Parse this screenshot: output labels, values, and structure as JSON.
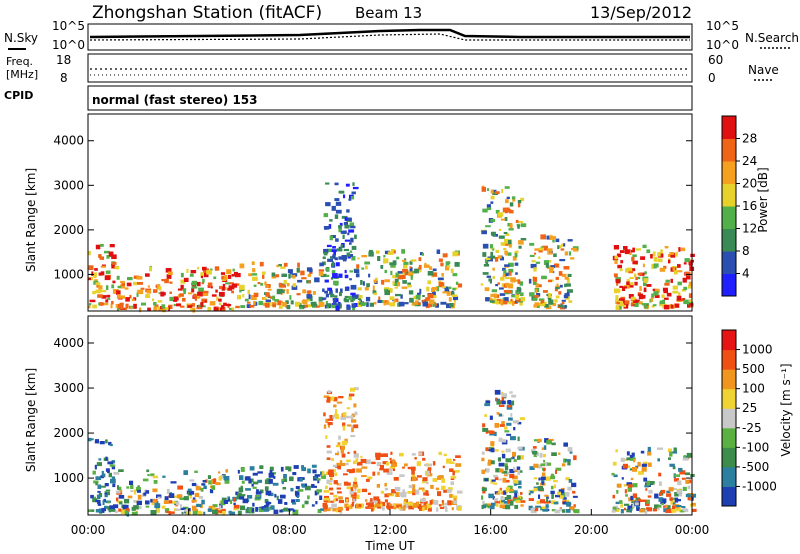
{
  "header": {
    "station": "Zhongshan Station (fitACF)",
    "beam": "Beam 13",
    "date": "13/Sep/2012"
  },
  "noise_panel": {
    "left_label": "N.Sky",
    "right_label": "N.Search",
    "left_ticks": [
      "10^5",
      "10^0"
    ],
    "right_ticks": [
      "10^5",
      "10^0"
    ]
  },
  "freq_panel": {
    "left_label_1": "Freq.",
    "left_label_2": "[MHz]",
    "right_label": "Nave",
    "left_ticks": [
      "18",
      "8"
    ],
    "right_ticks": [
      "60",
      "0"
    ]
  },
  "cpid": {
    "label": "CPID",
    "text": "normal (fast stereo) 153"
  },
  "colors": {
    "power_scale": [
      "#1f1fff",
      "#2b4fb0",
      "#3a8a55",
      "#52b04a",
      "#e6d22a",
      "#f5a01f",
      "#f06418",
      "#e01010"
    ],
    "velocity_scale": [
      "#1e3fb4",
      "#2d7fa0",
      "#3c8c4c",
      "#5ab040",
      "#c8c8c8",
      "#f0d232",
      "#f0961e",
      "#f05014",
      "#e61414"
    ]
  },
  "chart_data": [
    {
      "type": "heatmap",
      "name": "power",
      "xlabel": "",
      "ylabel": "Slant Range [km]",
      "xlim": [
        0,
        24
      ],
      "ylim": [
        180,
        4600
      ],
      "yticks": [
        "1000",
        "2000",
        "3000",
        "4000"
      ],
      "colorbar": {
        "label": "Power [dB]",
        "ticks": [
          "4",
          "8",
          "12",
          "16",
          "20",
          "24",
          "28"
        ]
      },
      "regions": [
        {
          "t0": 0.0,
          "t1": 1.0,
          "r0": 300,
          "r1": 1700,
          "level": "high"
        },
        {
          "t0": 1.0,
          "t1": 6.0,
          "r0": 250,
          "r1": 1200,
          "level": "high"
        },
        {
          "t0": 6.0,
          "t1": 9.3,
          "r0": 300,
          "r1": 1300,
          "level": "medium"
        },
        {
          "t0": 9.3,
          "t1": 10.6,
          "r0": 300,
          "r1": 3100,
          "level": "low"
        },
        {
          "t0": 10.6,
          "t1": 14.7,
          "r0": 350,
          "r1": 1600,
          "level": "medium"
        },
        {
          "t0": 15.6,
          "t1": 17.2,
          "r0": 400,
          "r1": 3000,
          "level": "medium"
        },
        {
          "t0": 17.5,
          "t1": 19.3,
          "r0": 300,
          "r1": 1900,
          "level": "medium"
        },
        {
          "t0": 20.8,
          "t1": 24.0,
          "r0": 300,
          "r1": 1700,
          "level": "high"
        }
      ]
    },
    {
      "type": "heatmap",
      "name": "velocity",
      "xlabel": "Time UT",
      "ylabel": "Slant Range [km]",
      "xlim": [
        0,
        24
      ],
      "ylim": [
        180,
        4600
      ],
      "xticks": [
        "00:00",
        "04:00",
        "08:00",
        "12:00",
        "16:00",
        "20:00",
        "00:00"
      ],
      "yticks": [
        "1000",
        "2000",
        "3000",
        "4000"
      ],
      "colorbar": {
        "label": "Velocity [m s⁻¹]",
        "ticks": [
          "1000",
          "500",
          "100",
          "25",
          "-25",
          "-100",
          "-500",
          "-1000"
        ]
      },
      "regions": [
        {
          "t0": 0.0,
          "t1": 1.0,
          "r0": 300,
          "r1": 1900,
          "level": "toward"
        },
        {
          "t0": 1.0,
          "t1": 6.0,
          "r0": 250,
          "r1": 1200,
          "level": "mixed"
        },
        {
          "t0": 6.0,
          "t1": 9.3,
          "r0": 300,
          "r1": 1300,
          "level": "toward"
        },
        {
          "t0": 9.3,
          "t1": 10.6,
          "r0": 300,
          "r1": 3100,
          "level": "away"
        },
        {
          "t0": 10.6,
          "t1": 14.7,
          "r0": 350,
          "r1": 1600,
          "level": "away"
        },
        {
          "t0": 15.6,
          "t1": 17.2,
          "r0": 400,
          "r1": 3000,
          "level": "mixed"
        },
        {
          "t0": 17.5,
          "t1": 19.3,
          "r0": 300,
          "r1": 1900,
          "level": "mixed"
        },
        {
          "t0": 20.8,
          "t1": 24.0,
          "r0": 300,
          "r1": 1700,
          "level": "mixed"
        }
      ]
    }
  ]
}
